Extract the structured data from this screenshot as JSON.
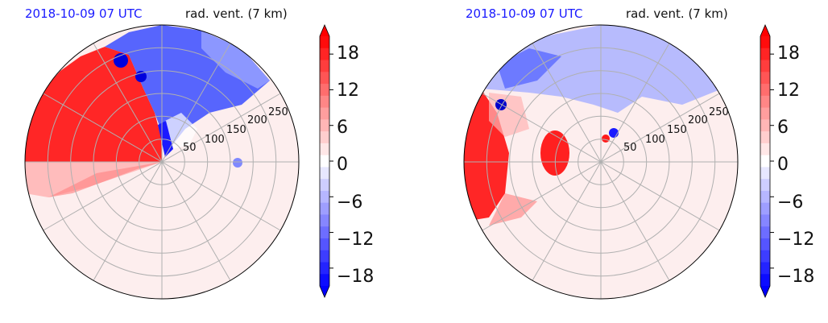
{
  "chart_data": [
    {
      "type": "heatmap",
      "projection": "polar",
      "title_left": "2018-10-09 07 UTC",
      "title_right": "rad. vent. (7 km)",
      "radial_ticks": [
        "50",
        "100",
        "150",
        "200",
        "250"
      ],
      "radial_values": [
        50,
        100,
        150,
        200,
        250
      ],
      "rmax": 300,
      "grid": true,
      "colorbar": {
        "ticks": [
          "18",
          "12",
          "6",
          "0",
          "−6",
          "−12",
          "−18"
        ],
        "tick_values": [
          18,
          12,
          6,
          0,
          -6,
          -12,
          -18
        ],
        "range": [
          -21,
          21
        ],
        "extend": "both",
        "colors": {
          "negative": "#0000ff",
          "neutral": "#ffffff",
          "positive": "#ff0000"
        }
      }
    },
    {
      "type": "heatmap",
      "projection": "polar",
      "title_left": "2018-10-09 07 UTC",
      "title_right": "rad. vent. (7 km)",
      "radial_ticks": [
        "50",
        "100",
        "150",
        "200",
        "250"
      ],
      "radial_values": [
        50,
        100,
        150,
        200,
        250
      ],
      "rmax": 300,
      "grid": true,
      "colorbar": {
        "ticks": [
          "18",
          "12",
          "6",
          "0",
          "−6",
          "−12",
          "−18"
        ],
        "tick_values": [
          18,
          12,
          6,
          0,
          -6,
          -12,
          -18
        ],
        "range": [
          -21,
          21
        ],
        "extend": "both",
        "colors": {
          "negative": "#0000ff",
          "neutral": "#ffffff",
          "positive": "#ff0000"
        }
      }
    }
  ]
}
